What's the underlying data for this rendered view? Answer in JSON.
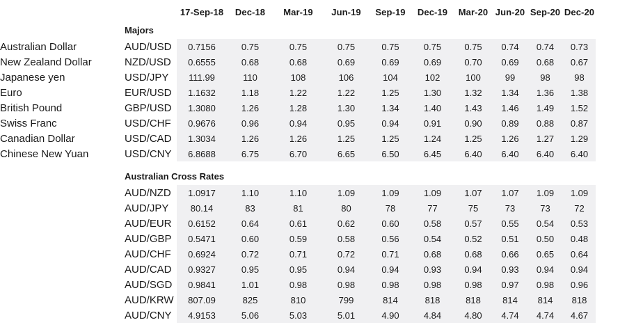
{
  "colors": {
    "data_cell_bg": "#f0f0f2",
    "text": "#1a1a1a",
    "page_bg": "#ffffff"
  },
  "chart_data": {
    "type": "table",
    "title": "",
    "column_headers": [
      "17-Sep-18",
      "Dec-18",
      "Mar-19",
      "Jun-19",
      "Sep-19",
      "Dec-19",
      "Mar-20",
      "Jun-20",
      "Sep-20",
      "Dec-20"
    ],
    "sections": [
      {
        "title": "Majors",
        "rows": [
          {
            "name": "Australian Dollar",
            "pair": "AUD/USD",
            "values": [
              "0.7156",
              "0.75",
              "0.75",
              "0.75",
              "0.75",
              "0.75",
              "0.75",
              "0.74",
              "0.74",
              "0.73"
            ]
          },
          {
            "name": "New Zealand Dollar",
            "pair": "NZD/USD",
            "values": [
              "0.6555",
              "0.68",
              "0.68",
              "0.69",
              "0.69",
              "0.69",
              "0.70",
              "0.69",
              "0.68",
              "0.67"
            ]
          },
          {
            "name": "Japanese yen",
            "pair": "USD/JPY",
            "values": [
              "111.99",
              "110",
              "108",
              "106",
              "104",
              "102",
              "100",
              "99",
              "98",
              "98"
            ]
          },
          {
            "name": "Euro",
            "pair": "EUR/USD",
            "values": [
              "1.1632",
              "1.18",
              "1.22",
              "1.22",
              "1.25",
              "1.30",
              "1.32",
              "1.34",
              "1.36",
              "1.38"
            ]
          },
          {
            "name": "British Pound",
            "pair": "GBP/USD",
            "values": [
              "1.3080",
              "1.26",
              "1.28",
              "1.30",
              "1.34",
              "1.40",
              "1.43",
              "1.46",
              "1.49",
              "1.52"
            ]
          },
          {
            "name": "Swiss Franc",
            "pair": "USD/CHF",
            "values": [
              "0.9676",
              "0.96",
              "0.94",
              "0.95",
              "0.94",
              "0.91",
              "0.90",
              "0.89",
              "0.88",
              "0.87"
            ]
          },
          {
            "name": "Canadian Dollar",
            "pair": "USD/CAD",
            "values": [
              "1.3034",
              "1.26",
              "1.26",
              "1.25",
              "1.25",
              "1.24",
              "1.25",
              "1.26",
              "1.27",
              "1.29"
            ]
          },
          {
            "name": "Chinese New Yuan",
            "pair": "USD/CNY",
            "values": [
              "6.8688",
              "6.75",
              "6.70",
              "6.65",
              "6.50",
              "6.45",
              "6.40",
              "6.40",
              "6.40",
              "6.40"
            ]
          }
        ]
      },
      {
        "title": "Australian Cross Rates",
        "rows": [
          {
            "name": "",
            "pair": "AUD/NZD",
            "values": [
              "1.0917",
              "1.10",
              "1.10",
              "1.09",
              "1.09",
              "1.09",
              "1.07",
              "1.07",
              "1.09",
              "1.09"
            ]
          },
          {
            "name": "",
            "pair": "AUD/JPY",
            "values": [
              "80.14",
              "83",
              "81",
              "80",
              "78",
              "77",
              "75",
              "73",
              "73",
              "72"
            ]
          },
          {
            "name": "",
            "pair": "AUD/EUR",
            "values": [
              "0.6152",
              "0.64",
              "0.61",
              "0.62",
              "0.60",
              "0.58",
              "0.57",
              "0.55",
              "0.54",
              "0.53"
            ]
          },
          {
            "name": "",
            "pair": "AUD/GBP",
            "values": [
              "0.5471",
              "0.60",
              "0.59",
              "0.58",
              "0.56",
              "0.54",
              "0.52",
              "0.51",
              "0.50",
              "0.48"
            ]
          },
          {
            "name": "",
            "pair": "AUD/CHF",
            "values": [
              "0.6924",
              "0.72",
              "0.71",
              "0.72",
              "0.71",
              "0.68",
              "0.68",
              "0.66",
              "0.65",
              "0.64"
            ]
          },
          {
            "name": "",
            "pair": "AUD/CAD",
            "values": [
              "0.9327",
              "0.95",
              "0.95",
              "0.94",
              "0.94",
              "0.93",
              "0.94",
              "0.93",
              "0.94",
              "0.94"
            ]
          },
          {
            "name": "",
            "pair": "AUD/SGD",
            "values": [
              "0.9841",
              "1.01",
              "0.98",
              "0.98",
              "0.98",
              "0.98",
              "0.98",
              "0.97",
              "0.98",
              "0.96"
            ]
          },
          {
            "name": "",
            "pair": "AUD/KRW",
            "values": [
              "807.09",
              "825",
              "810",
              "799",
              "814",
              "818",
              "818",
              "814",
              "814",
              "818"
            ]
          },
          {
            "name": "",
            "pair": "AUD/CNY",
            "values": [
              "4.9153",
              "5.06",
              "5.03",
              "5.01",
              "4.90",
              "4.84",
              "4.80",
              "4.74",
              "4.74",
              "4.67"
            ]
          }
        ]
      }
    ]
  }
}
